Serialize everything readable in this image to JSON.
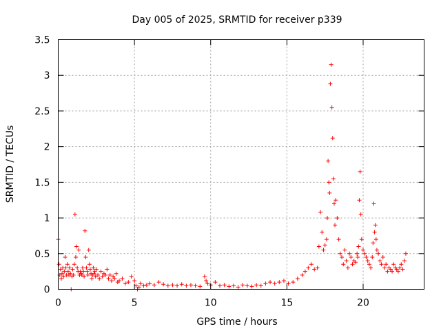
{
  "chart_data": {
    "type": "scatter",
    "title": "Day 005 of 2025, SRMTID for receiver p339",
    "xlabel": "GPS time / hours",
    "ylabel": "SRMTID / TECUs",
    "xlim": [
      0,
      24
    ],
    "ylim": [
      0,
      3.5
    ],
    "x_ticks": [
      0,
      5,
      10,
      15,
      20
    ],
    "x_tick_labels": [
      "0",
      "5",
      "10",
      "15",
      "20"
    ],
    "y_ticks": [
      0,
      0.5,
      1,
      1.5,
      2,
      2.5,
      3,
      3.5
    ],
    "y_tick_labels": [
      "0",
      "0.5",
      "1",
      "1.5",
      "2",
      "2.5",
      "3",
      "3.5"
    ],
    "grid": true,
    "marker": "+",
    "series": [
      {
        "name": "SRMTID",
        "color": "#ff0000",
        "x": [
          0.0,
          0.05,
          0.1,
          0.15,
          0.2,
          0.25,
          0.3,
          0.35,
          0.4,
          0.45,
          0.5,
          0.55,
          0.6,
          0.65,
          0.7,
          0.75,
          0.8,
          0.85,
          0.9,
          0.95,
          1.0,
          1.05,
          1.1,
          1.15,
          1.2,
          1.25,
          1.3,
          1.35,
          1.4,
          1.45,
          1.5,
          1.55,
          1.6,
          1.65,
          1.7,
          1.75,
          1.8,
          1.85,
          1.9,
          1.95,
          2.0,
          2.05,
          2.1,
          2.15,
          2.2,
          2.25,
          2.3,
          2.35,
          2.4,
          2.45,
          2.5,
          2.6,
          2.7,
          2.8,
          2.9,
          3.0,
          3.1,
          3.2,
          3.3,
          3.4,
          3.5,
          3.6,
          3.7,
          3.8,
          3.9,
          4.0,
          4.2,
          4.4,
          4.6,
          4.8,
          5.0,
          5.1,
          5.2,
          5.3,
          5.4,
          5.6,
          5.8,
          6.0,
          6.3,
          6.6,
          6.9,
          7.2,
          7.5,
          7.8,
          8.1,
          8.4,
          8.7,
          9.0,
          9.3,
          9.6,
          9.7,
          9.8,
          10.0,
          10.3,
          10.6,
          10.9,
          11.2,
          11.5,
          11.8,
          12.1,
          12.4,
          12.7,
          13.0,
          13.3,
          13.6,
          13.9,
          14.2,
          14.5,
          14.8,
          15.1,
          15.4,
          15.7,
          16.0,
          16.2,
          16.4,
          16.6,
          16.8,
          17.0,
          17.1,
          17.2,
          17.3,
          17.4,
          17.5,
          17.6,
          17.65,
          17.7,
          17.75,
          17.8,
          17.85,
          17.9,
          17.95,
          18.0,
          18.05,
          18.1,
          18.15,
          18.2,
          18.3,
          18.4,
          18.5,
          18.6,
          18.7,
          18.8,
          18.9,
          19.0,
          19.1,
          19.2,
          19.3,
          19.4,
          19.5,
          19.6,
          19.65,
          19.7,
          19.75,
          19.8,
          19.85,
          19.9,
          20.0,
          20.1,
          20.2,
          20.3,
          20.4,
          20.5,
          20.6,
          20.65,
          20.7,
          20.75,
          20.8,
          20.85,
          20.9,
          21.0,
          21.1,
          21.2,
          21.3,
          21.4,
          21.5,
          21.6,
          21.7,
          21.8,
          21.9,
          22.0,
          22.1,
          22.2,
          22.3,
          22.4,
          22.5,
          22.6,
          22.7,
          22.8
        ],
        "y": [
          0.7,
          0.35,
          0.2,
          0.28,
          0.15,
          0.22,
          0.3,
          0.18,
          0.25,
          0.45,
          0.3,
          0.2,
          0.35,
          0.25,
          0.2,
          0.3,
          0.22,
          0.0,
          0.18,
          0.28,
          0.2,
          0.35,
          1.05,
          0.45,
          0.6,
          0.3,
          0.25,
          0.55,
          0.2,
          0.25,
          0.22,
          0.2,
          0.3,
          0.25,
          0.18,
          0.82,
          0.45,
          0.3,
          0.25,
          0.2,
          0.55,
          0.35,
          0.28,
          0.22,
          0.15,
          0.2,
          0.3,
          0.22,
          0.25,
          0.18,
          0.28,
          0.2,
          0.15,
          0.25,
          0.18,
          0.22,
          0.2,
          0.28,
          0.15,
          0.2,
          0.12,
          0.18,
          0.15,
          0.22,
          0.1,
          0.12,
          0.15,
          0.08,
          0.1,
          0.18,
          0.12,
          0.05,
          0.0,
          0.03,
          0.08,
          0.05,
          0.06,
          0.08,
          0.06,
          0.1,
          0.07,
          0.05,
          0.06,
          0.05,
          0.07,
          0.05,
          0.06,
          0.05,
          0.04,
          0.18,
          0.12,
          0.08,
          0.06,
          0.1,
          0.05,
          0.06,
          0.04,
          0.05,
          0.03,
          0.06,
          0.05,
          0.04,
          0.06,
          0.05,
          0.08,
          0.1,
          0.08,
          0.1,
          0.12,
          0.08,
          0.1,
          0.15,
          0.2,
          0.25,
          0.3,
          0.35,
          0.28,
          0.3,
          0.6,
          1.08,
          0.8,
          0.55,
          0.62,
          0.7,
          1.0,
          1.8,
          1.5,
          1.35,
          2.88,
          3.15,
          2.55,
          2.12,
          1.55,
          1.2,
          0.9,
          1.25,
          1.0,
          0.7,
          0.5,
          0.45,
          0.35,
          0.55,
          0.4,
          0.3,
          0.5,
          0.45,
          0.35,
          0.4,
          0.38,
          0.5,
          0.45,
          0.6,
          1.25,
          1.65,
          1.05,
          0.7,
          0.55,
          0.5,
          0.45,
          0.4,
          0.35,
          0.3,
          0.45,
          0.65,
          1.2,
          0.8,
          0.9,
          0.7,
          0.55,
          0.5,
          0.4,
          0.35,
          0.45,
          0.3,
          0.35,
          0.25,
          0.3,
          0.28,
          0.25,
          0.35,
          0.3,
          0.28,
          0.25,
          0.3,
          0.35,
          0.28,
          0.4,
          0.5
        ]
      }
    ]
  }
}
